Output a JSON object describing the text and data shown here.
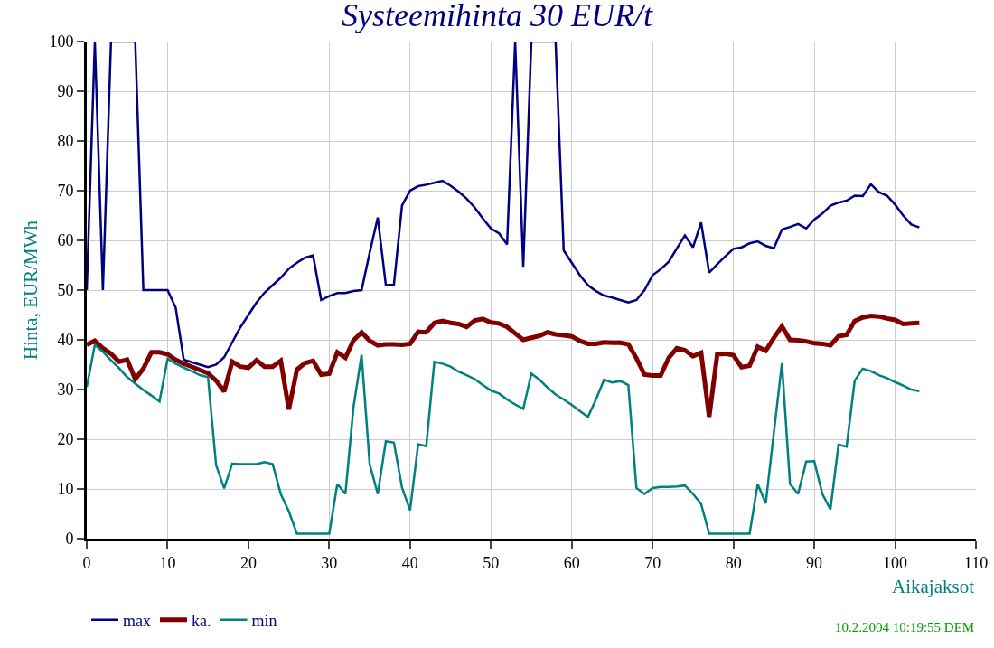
{
  "chart_data": {
    "type": "line",
    "title": "Systeemihinta 30 EUR/t",
    "xlabel": "Aikajaksot",
    "ylabel": "Hinta, EUR/MWh",
    "x": [
      0,
      1,
      2,
      3,
      4,
      5,
      6,
      7,
      8,
      9,
      10,
      11,
      12,
      13,
      14,
      15,
      16,
      17,
      18,
      19,
      20,
      21,
      22,
      23,
      24,
      25,
      26,
      27,
      28,
      29,
      30,
      31,
      32,
      33,
      34,
      35,
      36,
      37,
      38,
      39,
      40,
      41,
      42,
      43,
      44,
      45,
      46,
      47,
      48,
      49,
      50,
      51,
      52,
      53,
      54,
      55,
      56,
      57,
      58,
      59,
      60,
      61,
      62,
      63,
      64,
      65,
      66,
      67,
      68,
      69,
      70,
      71,
      72,
      73,
      74,
      75,
      76,
      77,
      78,
      79,
      80,
      81,
      82,
      83,
      84,
      85,
      86,
      87,
      88,
      89,
      90,
      91,
      92,
      93,
      94,
      95,
      96,
      97,
      98,
      99,
      100,
      101,
      102,
      103
    ],
    "series": [
      {
        "name": "max",
        "color": "#000080",
        "values": [
          50,
          100,
          50,
          100,
          100,
          100,
          100,
          50,
          50,
          50,
          50,
          46.5,
          36,
          35.5,
          35,
          34.5,
          35,
          36.5,
          39.5,
          42.5,
          45,
          47.5,
          49.5,
          51,
          52.5,
          54.3,
          55.5,
          56.5,
          57,
          48,
          48.8,
          49.4,
          49.4,
          49.8,
          50,
          57.5,
          64.6,
          51,
          51.1,
          67,
          70,
          70.9,
          71.2,
          71.6,
          72,
          71,
          69.8,
          68.4,
          66.6,
          64.4,
          62.4,
          61.4,
          59.2,
          100,
          54.7,
          100,
          100,
          100,
          100,
          58,
          55.5,
          53,
          51,
          49.8,
          48.9,
          48.5,
          48,
          47.5,
          48,
          50,
          53,
          54.2,
          55.7,
          58.4,
          61,
          58.6,
          63.6,
          53.5,
          55.2,
          56.8,
          58.3,
          58.6,
          59.4,
          59.8,
          58.9,
          58.4,
          62.2,
          62.7,
          63.3,
          62.4,
          64.2,
          65.4,
          67,
          67.6,
          68,
          69,
          68.9,
          71.3,
          69.7,
          69,
          67.2,
          65,
          63.2,
          62.6
        ]
      },
      {
        "name": "ka.",
        "color": "#800000",
        "values": [
          39,
          39.8,
          38.3,
          37.2,
          35.6,
          36,
          32.1,
          34.2,
          37.5,
          37.5,
          37.1,
          36,
          35.2,
          34.6,
          33.9,
          33.3,
          31.8,
          29.6,
          35.6,
          34.6,
          34.4,
          35.9,
          34.6,
          34.6,
          35.8,
          26,
          34,
          35.3,
          35.8,
          33,
          33.2,
          37.5,
          36.4,
          39.9,
          41.5,
          39.8,
          38.9,
          39.1,
          39.1,
          39,
          39.2,
          41.6,
          41.5,
          43.4,
          43.8,
          43.4,
          43.2,
          42.6,
          43.9,
          44.2,
          43.5,
          43.3,
          42.6,
          41.3,
          40,
          40.4,
          40.8,
          41.5,
          41.1,
          40.9,
          40.7,
          39.8,
          39.2,
          39.2,
          39.5,
          39.4,
          39.4,
          39.1,
          36.3,
          33,
          32.8,
          32.8,
          36.4,
          38.3,
          37.9,
          36.7,
          37.4,
          24.5,
          37.1,
          37.2,
          36.9,
          34.5,
          34.8,
          38.6,
          37.8,
          40.4,
          42.7,
          40,
          39.9,
          39.7,
          39.3,
          39.2,
          38.9,
          40.7,
          41,
          43.8,
          44.5,
          44.8,
          44.7,
          44.3,
          44,
          43.2,
          43.3,
          43.4
        ]
      },
      {
        "name": "min",
        "color": "#008080",
        "values": [
          30.5,
          39,
          37.6,
          35.9,
          34.3,
          32.5,
          31.2,
          29.9,
          28.8,
          27.6,
          36.2,
          35.2,
          34.4,
          33.7,
          32.9,
          32.5,
          14.8,
          10.1,
          15.1,
          15,
          15,
          15,
          15.4,
          15,
          9,
          5.5,
          1,
          1,
          1,
          1,
          1,
          11,
          9,
          26.5,
          37,
          15,
          9,
          19.6,
          19.3,
          10.3,
          5.7,
          19,
          18.6,
          35.6,
          35.2,
          34.6,
          33.6,
          32.9,
          32.1,
          30.9,
          29.8,
          29.2,
          28,
          27,
          26.1,
          33.2,
          32,
          30.4,
          29,
          28,
          26.9,
          25.7,
          24.5,
          28,
          32,
          31.4,
          31.7,
          30.9,
          10.2,
          9,
          10.2,
          10.4,
          10.4,
          10.5,
          10.7,
          9,
          7,
          1,
          1,
          1,
          1,
          1,
          1,
          11,
          7.1,
          21.3,
          35.3,
          11,
          9,
          15.5,
          15.6,
          9,
          5.9,
          18.9,
          18.5,
          31.8,
          34.2,
          33.7,
          32.9,
          32.3,
          31.5,
          30.8,
          30,
          29.7
        ]
      }
    ],
    "xlim": [
      0,
      110
    ],
    "xticks": [
      0,
      10,
      20,
      30,
      40,
      50,
      60,
      70,
      80,
      90,
      100,
      110
    ],
    "ylim": [
      0,
      100
    ],
    "yticks": [
      0,
      10,
      20,
      30,
      40,
      50,
      60,
      70,
      80,
      90,
      100
    ],
    "grid": true,
    "legend": "bottom left",
    "marker": "none",
    "line_style": "solid",
    "annotations": [
      "10.2.2004 10:19:55 DEM"
    ]
  }
}
